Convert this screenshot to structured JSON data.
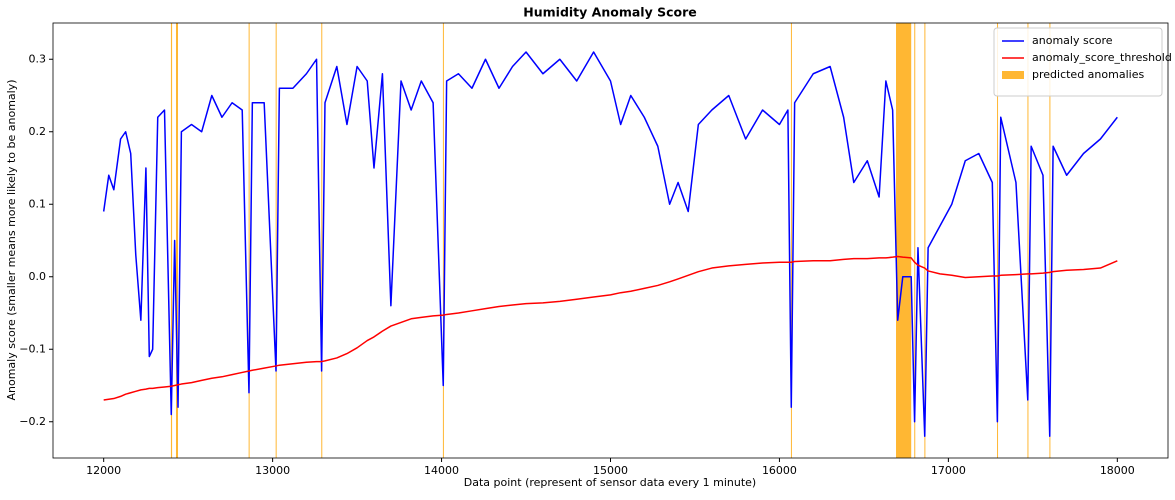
{
  "chart_data": {
    "type": "line",
    "title": "Humidity Anomaly Score",
    "xlabel": "Data point (represent of sensor data every 1 minute)",
    "ylabel": "Anomaly score (smaller means more likely to be anomaly)",
    "x": [
      12000,
      12030,
      12060,
      12100,
      12130,
      12160,
      12190,
      12220,
      12250,
      12270,
      12290,
      12320,
      12360,
      12400,
      12420,
      12440,
      12460,
      12520,
      12580,
      12640,
      12700,
      12760,
      12820,
      12860,
      12880,
      12950,
      13020,
      13040,
      13120,
      13200,
      13260,
      13290,
      13310,
      13380,
      13440,
      13500,
      13560,
      13600,
      13650,
      13700,
      13760,
      13820,
      13880,
      13950,
      14010,
      14030,
      14100,
      14180,
      14260,
      14340,
      14420,
      14500,
      14600,
      14700,
      14800,
      14900,
      15000,
      15060,
      15120,
      15200,
      15280,
      15350,
      15400,
      15460,
      15520,
      15600,
      15700,
      15800,
      15900,
      16000,
      16050,
      16070,
      16090,
      16200,
      16300,
      16380,
      16440,
      16520,
      16590,
      16630,
      16670,
      16700,
      16730,
      16780,
      16800,
      16820,
      16860,
      16880,
      16950,
      17020,
      17100,
      17180,
      17260,
      17290,
      17310,
      17400,
      17470,
      17490,
      17560,
      17600,
      17620,
      17700,
      17800,
      17900,
      18000
    ],
    "series": [
      {
        "name": "anomaly score",
        "color": "#0000ff",
        "values": [
          0.09,
          0.14,
          0.12,
          0.19,
          0.2,
          0.17,
          0.03,
          -0.06,
          0.15,
          -0.11,
          -0.1,
          0.22,
          0.23,
          -0.19,
          0.05,
          -0.18,
          0.2,
          0.21,
          0.2,
          0.25,
          0.22,
          0.24,
          0.23,
          -0.16,
          0.24,
          0.24,
          -0.13,
          0.26,
          0.26,
          0.28,
          0.3,
          -0.13,
          0.24,
          0.29,
          0.21,
          0.29,
          0.27,
          0.15,
          0.28,
          -0.04,
          0.27,
          0.23,
          0.27,
          0.24,
          -0.15,
          0.27,
          0.28,
          0.26,
          0.3,
          0.26,
          0.29,
          0.31,
          0.28,
          0.3,
          0.27,
          0.31,
          0.27,
          0.21,
          0.25,
          0.22,
          0.18,
          0.1,
          0.13,
          0.09,
          0.21,
          0.23,
          0.25,
          0.19,
          0.23,
          0.21,
          0.23,
          -0.18,
          0.24,
          0.28,
          0.29,
          0.22,
          0.13,
          0.16,
          0.11,
          0.27,
          0.23,
          -0.06,
          0.0,
          0.0,
          -0.2,
          0.04,
          -0.22,
          0.04,
          0.07,
          0.1,
          0.16,
          0.17,
          0.13,
          -0.2,
          0.22,
          0.13,
          -0.17,
          0.18,
          0.14,
          -0.22,
          0.18,
          0.14,
          0.17,
          0.19,
          0.22
        ]
      },
      {
        "name": "anomaly_score_threshold",
        "color": "#ff0000",
        "values": [
          -0.17,
          -0.169,
          -0.168,
          -0.165,
          -0.162,
          -0.16,
          -0.158,
          -0.156,
          -0.155,
          -0.154,
          -0.154,
          -0.153,
          -0.152,
          -0.151,
          -0.15,
          -0.149,
          -0.148,
          -0.146,
          -0.143,
          -0.14,
          -0.138,
          -0.135,
          -0.132,
          -0.13,
          -0.129,
          -0.126,
          -0.123,
          -0.122,
          -0.12,
          -0.118,
          -0.117,
          -0.117,
          -0.116,
          -0.112,
          -0.106,
          -0.098,
          -0.088,
          -0.083,
          -0.075,
          -0.068,
          -0.063,
          -0.058,
          -0.056,
          -0.054,
          -0.053,
          -0.052,
          -0.05,
          -0.047,
          -0.044,
          -0.041,
          -0.039,
          -0.037,
          -0.036,
          -0.034,
          -0.031,
          -0.028,
          -0.025,
          -0.022,
          -0.02,
          -0.016,
          -0.012,
          -0.007,
          -0.003,
          0.002,
          0.007,
          0.012,
          0.015,
          0.017,
          0.019,
          0.02,
          0.02,
          0.02,
          0.021,
          0.022,
          0.022,
          0.024,
          0.025,
          0.025,
          0.026,
          0.026,
          0.027,
          0.028,
          0.027,
          0.026,
          0.02,
          0.016,
          0.012,
          0.008,
          0.004,
          0.002,
          -0.001,
          0.0,
          0.001,
          0.001,
          0.002,
          0.003,
          0.004,
          0.004,
          0.005,
          0.006,
          0.007,
          0.009,
          0.01,
          0.012,
          0.022
        ]
      },
      {
        "name": "predicted anomalies",
        "color": "#ffa500",
        "spans": [
          [
            12398,
            12405
          ],
          [
            12428,
            12440
          ],
          [
            12858,
            12863
          ],
          [
            13018,
            13023
          ],
          [
            13288,
            13293
          ],
          [
            14008,
            14013
          ],
          [
            16068,
            16073
          ],
          [
            16690,
            16780
          ],
          [
            16798,
            16803
          ],
          [
            16858,
            16863
          ],
          [
            17288,
            17293
          ],
          [
            17468,
            17473
          ],
          [
            17598,
            17603
          ]
        ]
      }
    ],
    "xlim": [
      11700,
      18300
    ],
    "ylim": [
      -0.25,
      0.35
    ],
    "xticks": [
      12000,
      13000,
      14000,
      15000,
      16000,
      17000,
      18000
    ],
    "yticks": [
      {
        "value": -0.2,
        "label": "−0.2"
      },
      {
        "value": -0.1,
        "label": "−0.1"
      },
      {
        "value": 0,
        "label": "0.0"
      },
      0.1,
      0.2,
      0.3
    ],
    "legend": "upper right"
  }
}
